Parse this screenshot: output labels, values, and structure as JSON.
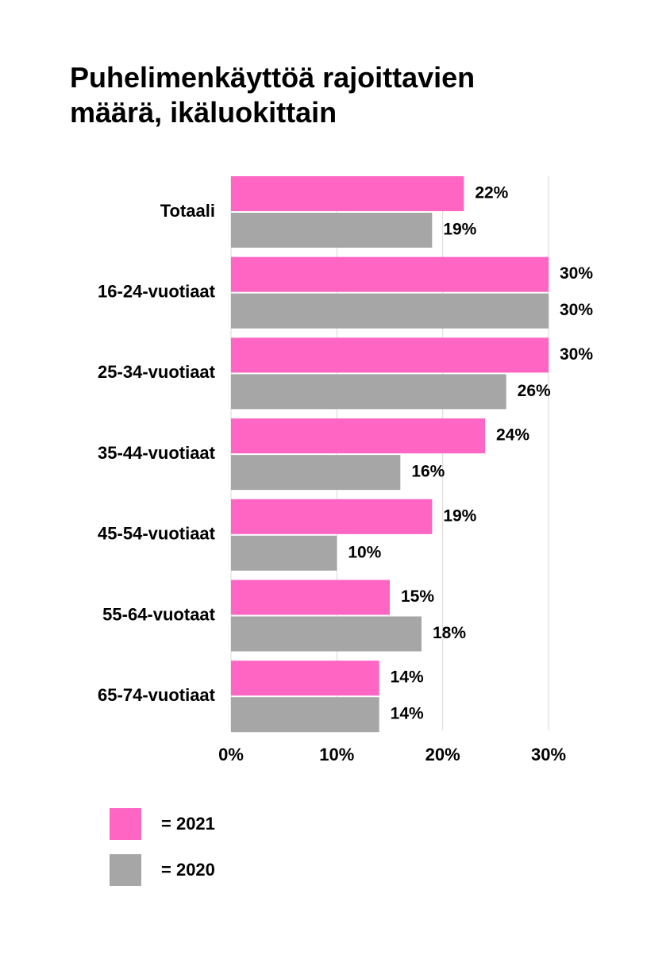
{
  "chart_data": {
    "type": "bar",
    "orientation": "horizontal",
    "title": "Puhelimenkäyttöä rajoittavien määrä, ikäluokittain",
    "categories": [
      "Totaali",
      "16-24-vuotiaat",
      "25-34-vuotiaat",
      "35-44-vuotiaat",
      "45-54-vuotiaat",
      "55-64-vuotaat",
      "65-74-vuotiaat"
    ],
    "series": [
      {
        "name": "= 2021",
        "color": "#ff66c4",
        "values": [
          22,
          30,
          30,
          24,
          19,
          15,
          14
        ],
        "value_labels": [
          "22%",
          "30%",
          "30%",
          "24%",
          "19%",
          "15%",
          "14%"
        ]
      },
      {
        "name": "= 2020",
        "color": "#a6a6a6",
        "values": [
          19,
          30,
          26,
          16,
          10,
          18,
          14
        ],
        "value_labels": [
          "19%",
          "30%",
          "26%",
          "16%",
          "10%",
          "18%",
          "14%"
        ]
      }
    ],
    "xlim": [
      0,
      30
    ],
    "xticks": [
      {
        "value": 0,
        "label": "0%"
      },
      {
        "value": 10,
        "label": "10%"
      },
      {
        "value": 20,
        "label": "20%"
      },
      {
        "value": 30,
        "label": "30%"
      }
    ],
    "grid": true
  }
}
